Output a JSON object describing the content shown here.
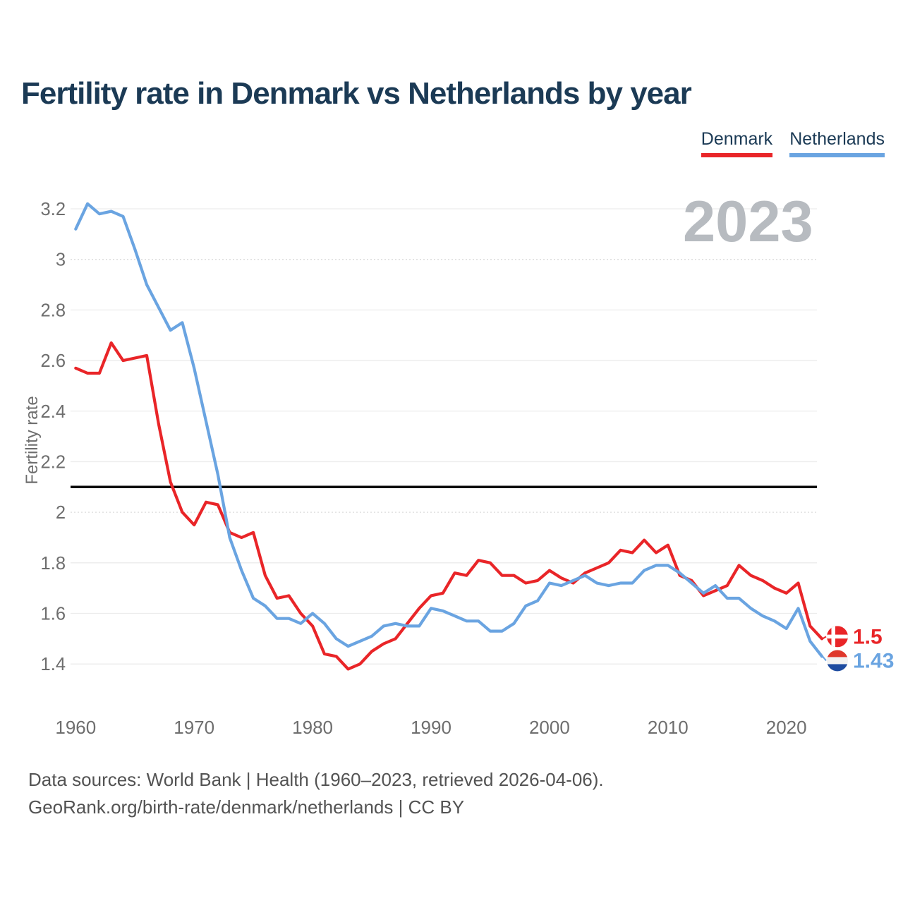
{
  "title": "Fertility rate in Denmark vs Netherlands by year",
  "watermark": "2023",
  "legend": {
    "items": [
      {
        "label": "Denmark",
        "color": "#e92528"
      },
      {
        "label": "Netherlands",
        "color": "#6aa4e1"
      }
    ]
  },
  "footer": {
    "line1": "Data sources: World Bank | Health (1960–2023, retrieved 2026-04-06).",
    "line2": "GeoRank.org/birth-rate/denmark/netherlands | CC BY"
  },
  "chart_data": {
    "type": "line",
    "title": "Fertility rate in Denmark vs Netherlands by year",
    "xlabel": "",
    "ylabel": "Fertility rate",
    "grid": "horizontal",
    "legend_position": "top-right",
    "x_range": [
      1960,
      2023
    ],
    "ylim": [
      1.3,
      3.28
    ],
    "xticks": [
      1960,
      1970,
      1980,
      1990,
      2000,
      2010,
      2020
    ],
    "yticks": [
      1.4,
      1.6,
      1.8,
      2,
      2.2,
      2.4,
      2.6,
      2.8,
      3,
      3.2
    ],
    "reference_line_y": 2.1,
    "years": [
      1960,
      1961,
      1962,
      1963,
      1964,
      1965,
      1966,
      1967,
      1968,
      1969,
      1970,
      1971,
      1972,
      1973,
      1974,
      1975,
      1976,
      1977,
      1978,
      1979,
      1980,
      1981,
      1982,
      1983,
      1984,
      1985,
      1986,
      1987,
      1988,
      1989,
      1990,
      1991,
      1992,
      1993,
      1994,
      1995,
      1996,
      1997,
      1998,
      1999,
      2000,
      2001,
      2002,
      2003,
      2004,
      2005,
      2006,
      2007,
      2008,
      2009,
      2010,
      2011,
      2012,
      2013,
      2014,
      2015,
      2016,
      2017,
      2018,
      2019,
      2020,
      2021,
      2022,
      2023
    ],
    "series": [
      {
        "name": "Denmark",
        "color": "#e92528",
        "flag": "denmark",
        "end_label": "1.5",
        "values": [
          2.57,
          2.55,
          2.55,
          2.67,
          2.6,
          2.61,
          2.62,
          2.35,
          2.12,
          2.0,
          1.95,
          2.04,
          2.03,
          1.92,
          1.9,
          1.92,
          1.75,
          1.66,
          1.67,
          1.6,
          1.55,
          1.44,
          1.43,
          1.38,
          1.4,
          1.45,
          1.48,
          1.5,
          1.56,
          1.62,
          1.67,
          1.68,
          1.76,
          1.75,
          1.81,
          1.8,
          1.75,
          1.75,
          1.72,
          1.73,
          1.77,
          1.74,
          1.72,
          1.76,
          1.78,
          1.8,
          1.85,
          1.84,
          1.89,
          1.84,
          1.87,
          1.75,
          1.73,
          1.67,
          1.69,
          1.71,
          1.79,
          1.75,
          1.73,
          1.7,
          1.68,
          1.72,
          1.55,
          1.5
        ]
      },
      {
        "name": "Netherlands",
        "color": "#6aa4e1",
        "flag": "netherlands",
        "end_label": "1.43",
        "values": [
          3.12,
          3.22,
          3.18,
          3.19,
          3.17,
          3.04,
          2.9,
          2.81,
          2.72,
          2.75,
          2.57,
          2.36,
          2.15,
          1.9,
          1.77,
          1.66,
          1.63,
          1.58,
          1.58,
          1.56,
          1.6,
          1.56,
          1.5,
          1.47,
          1.49,
          1.51,
          1.55,
          1.56,
          1.55,
          1.55,
          1.62,
          1.61,
          1.59,
          1.57,
          1.57,
          1.53,
          1.53,
          1.56,
          1.63,
          1.65,
          1.72,
          1.71,
          1.73,
          1.75,
          1.72,
          1.71,
          1.72,
          1.72,
          1.77,
          1.79,
          1.79,
          1.76,
          1.72,
          1.68,
          1.71,
          1.66,
          1.66,
          1.62,
          1.59,
          1.57,
          1.54,
          1.62,
          1.49,
          1.43
        ]
      }
    ],
    "end_flag_colors": {
      "denmark": {
        "base": "#e92528",
        "cross": "#ffffff"
      },
      "netherlands": {
        "top": "#df382c",
        "middle": "#f2f2f2",
        "bottom": "#1d4ba0"
      }
    }
  }
}
